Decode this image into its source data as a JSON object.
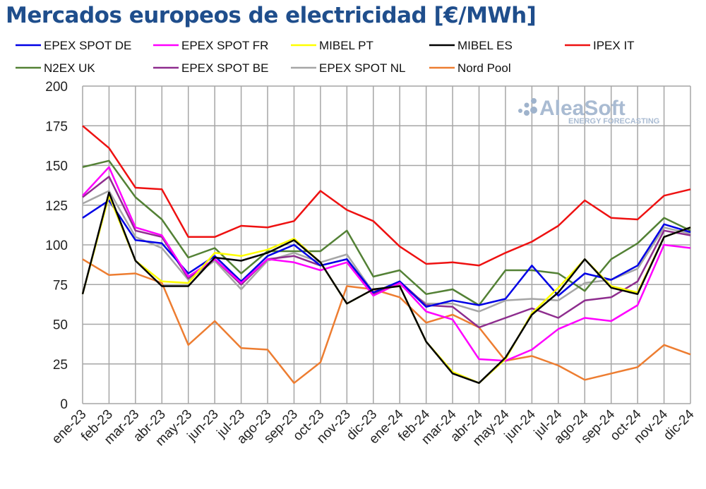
{
  "chart_data": {
    "type": "line",
    "title": "Mercados europeos de electricidad [€/MWh]",
    "xlabel": "",
    "ylabel": "",
    "ylim": [
      0,
      200
    ],
    "yticks": [
      0,
      25,
      50,
      75,
      100,
      125,
      150,
      175,
      200
    ],
    "grid": true,
    "legend": "top",
    "watermark": {
      "brand": "AleaSoft",
      "tagline": "ENERGY FORECASTING"
    },
    "categories": [
      "ene-23",
      "feb-23",
      "mar-23",
      "abr-23",
      "may-23",
      "jun-23",
      "jul-23",
      "ago-23",
      "sep-23",
      "oct-23",
      "nov-23",
      "dic-23",
      "ene-24",
      "feb-24",
      "mar-24",
      "abr-24",
      "may-24",
      "jun-24",
      "jul-24",
      "ago-24",
      "sep-24",
      "oct-24",
      "nov-24",
      "dic-24"
    ],
    "series": [
      {
        "name": "EPEX SPOT DE",
        "color": "#0000e6",
        "values": [
          117,
          128,
          103,
          101,
          82,
          93,
          77,
          93,
          100,
          87,
          91,
          70,
          77,
          61,
          65,
          62,
          66,
          87,
          68,
          82,
          78,
          87,
          113,
          108
        ]
      },
      {
        "name": "EPEX SPOT FR",
        "color": "#ff00ff",
        "values": [
          131,
          149,
          111,
          106,
          80,
          91,
          76,
          91,
          89,
          84,
          89,
          68,
          76,
          58,
          53,
          28,
          27,
          34,
          47,
          54,
          52,
          62,
          100,
          98
        ]
      },
      {
        "name": "MIBEL PT",
        "color": "#ffff00",
        "values": [
          69,
          131,
          90,
          77,
          76,
          95,
          93,
          97,
          104,
          89,
          63,
          72,
          74,
          39,
          20,
          13,
          28,
          57,
          73,
          91,
          74,
          70,
          105,
          111
        ]
      },
      {
        "name": "MIBEL ES",
        "color": "#000000",
        "values": [
          69,
          133,
          90,
          74,
          74,
          92,
          90,
          95,
          103,
          89,
          63,
          72,
          74,
          39,
          19,
          13,
          29,
          56,
          70,
          91,
          73,
          69,
          105,
          111
        ]
      },
      {
        "name": "IPEX IT",
        "color": "#ee1111",
        "values": [
          175,
          161,
          136,
          135,
          105,
          105,
          112,
          111,
          115,
          134,
          122,
          115,
          99,
          88,
          89,
          87,
          95,
          102,
          112,
          128,
          117,
          116,
          131,
          135
        ]
      },
      {
        "name": "N2EX UK",
        "color": "#538135",
        "values": [
          149,
          153,
          130,
          116,
          92,
          98,
          82,
          96,
          96,
          96,
          109,
          80,
          84,
          69,
          72,
          62,
          84,
          84,
          82,
          71,
          91,
          101,
          117,
          109
        ]
      },
      {
        "name": "EPEX SPOT BE",
        "color": "#8e2d8e",
        "values": [
          130,
          143,
          109,
          105,
          79,
          91,
          75,
          91,
          93,
          87,
          91,
          69,
          77,
          62,
          61,
          48,
          54,
          60,
          54,
          65,
          67,
          77,
          109,
          106
        ]
      },
      {
        "name": "EPEX SPOT NL",
        "color": "#a6a6a6",
        "values": [
          126,
          134,
          105,
          98,
          78,
          90,
          72,
          90,
          95,
          89,
          94,
          70,
          75,
          63,
          63,
          58,
          65,
          66,
          65,
          76,
          78,
          85,
          111,
          107
        ]
      },
      {
        "name": "Nord Pool",
        "color": "#ed7d31",
        "values": [
          91,
          81,
          82,
          76,
          37,
          52,
          35,
          34,
          13,
          26,
          74,
          72,
          67,
          51,
          56,
          48,
          27,
          30,
          24,
          15,
          19,
          23,
          37,
          31
        ]
      }
    ]
  }
}
